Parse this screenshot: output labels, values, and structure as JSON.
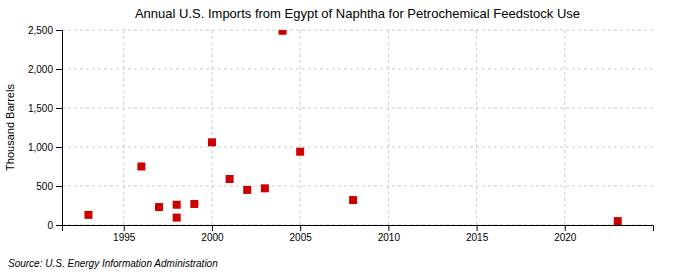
{
  "chart_data": {
    "type": "scatter",
    "title": "Annual U.S. Imports from Egypt of Naphtha for Petrochemical Feedstock Use",
    "ylabel": "Thousand Barrels",
    "source": "Source: U.S. Energy Information Administration",
    "color": "#cc0000",
    "marker": "square",
    "grid": true,
    "xlim": [
      1991.5,
      2025
    ],
    "xticks": [
      1995,
      2000,
      2005,
      2010,
      2015,
      2020
    ],
    "ylim": [
      0,
      2500
    ],
    "yticks": [
      0,
      500,
      {
        "value": 1000,
        "label": "1,000"
      },
      {
        "value": 1500,
        "label": "1,500"
      },
      {
        "value": 2000,
        "label": "2,000"
      },
      {
        "value": 2500,
        "label": "2,500"
      }
    ],
    "x": [
      1993,
      1996,
      1997,
      1998,
      1998,
      1999,
      2000,
      2001,
      2002,
      2003,
      2004,
      2005,
      2008,
      2023
    ],
    "values": [
      130,
      750,
      230,
      260,
      95,
      270,
      1060,
      590,
      450,
      470,
      2490,
      940,
      320,
      50
    ]
  }
}
